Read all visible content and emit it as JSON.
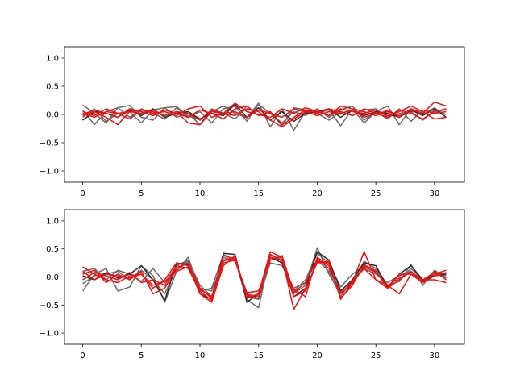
{
  "chart_data": [
    {
      "type": "line",
      "title": "",
      "xlabel": "",
      "ylabel": "",
      "xlim": [
        -1.55,
        32.55
      ],
      "ylim": [
        -1.2,
        1.2
      ],
      "xticks": [
        0,
        5,
        10,
        15,
        20,
        25,
        30
      ],
      "yticks": [
        -1.0,
        -0.5,
        0.0,
        0.5,
        1.0
      ],
      "ytick_labels": [
        "−1.0",
        "−0.5",
        "0.0",
        "0.5",
        "1.0"
      ],
      "grid": false,
      "colors": {
        "gray": "#6b6b6b",
        "dark": "#2a2a2a",
        "red": "#ee1111"
      },
      "series": [
        {
          "color": "gray",
          "values": [
            0.17,
            0.02,
            -0.15,
            0.12,
            0.16,
            -0.05,
            -0.1,
            0.12,
            0.14,
            -0.03,
            -0.08,
            0.05,
            0.15,
            0.02,
            -0.06,
            0.2,
            -0.22,
            0.1,
            -0.28,
            0.05,
            0.02,
            0.08,
            -0.2,
            0.1,
            -0.15,
            0.05,
            0.15,
            -0.18,
            0.1,
            0.0,
            0.12,
            -0.05
          ]
        },
        {
          "color": "gray",
          "values": [
            0.08,
            -0.18,
            0.05,
            0.12,
            -0.05,
            0.1,
            0.02,
            -0.08,
            0.12,
            -0.05,
            0.05,
            -0.15,
            0.1,
            0.15,
            -0.12,
            0.18,
            0.02,
            -0.15,
            0.05,
            -0.02,
            0.1,
            -0.05,
            0.08,
            0.15,
            -0.1,
            0.05,
            -0.08,
            0.1,
            -0.12,
            0.08,
            0.02,
            0.1
          ]
        },
        {
          "color": "gray",
          "values": [
            -0.05,
            0.1,
            -0.12,
            0.02,
            0.05,
            -0.15,
            0.08,
            0.12,
            -0.05,
            0.02,
            -0.18,
            0.1,
            0.02,
            -0.08,
            0.15,
            -0.02,
            0.05,
            -0.2,
            0.12,
            0.08,
            0.02,
            -0.1,
            0.05,
            -0.02,
            0.08,
            0.1,
            -0.05,
            0.02,
            0.05,
            -0.1,
            0.08,
            0.0
          ]
        },
        {
          "color": "dark",
          "values": [
            -0.1,
            0.05,
            0.02,
            -0.05,
            0.08,
            -0.02,
            0.1,
            -0.05,
            0.02,
            0.05,
            -0.08,
            0.02,
            -0.02,
            0.18,
            -0.05,
            0.12,
            -0.1,
            0.05,
            -0.12,
            0.02,
            0.05,
            0.1,
            -0.05,
            0.08,
            -0.02,
            0.05,
            0.02,
            -0.05,
            0.08,
            -0.02,
            0.1,
            -0.05
          ]
        },
        {
          "color": "red",
          "values": [
            0.05,
            -0.02,
            0.1,
            0.02,
            0.05,
            0.08,
            0.02,
            0.05,
            -0.02,
            0.1,
            0.15,
            -0.05,
            0.02,
            0.2,
            0.05,
            0.0,
            -0.05,
            0.1,
            0.02,
            0.12,
            0.05,
            -0.02,
            0.15,
            0.1,
            0.05,
            -0.02,
            0.08,
            -0.05,
            0.1,
            0.02,
            0.22,
            0.15
          ]
        },
        {
          "color": "red",
          "values": [
            0.0,
            0.08,
            0.02,
            -0.05,
            0.1,
            0.05,
            -0.02,
            0.08,
            0.02,
            -0.05,
            0.08,
            0.02,
            -0.08,
            0.1,
            0.15,
            -0.02,
            0.05,
            -0.18,
            -0.05,
            0.08,
            0.02,
            0.1,
            0.05,
            -0.02,
            0.1,
            0.02,
            -0.05,
            0.08,
            0.02,
            -0.08,
            0.05,
            0.1
          ]
        },
        {
          "color": "red",
          "values": [
            -0.02,
            0.05,
            -0.05,
            -0.18,
            0.05,
            0.02,
            0.08,
            -0.02,
            0.05,
            -0.15,
            -0.18,
            0.05,
            0.02,
            -0.02,
            0.1,
            0.05,
            -0.1,
            -0.22,
            -0.08,
            0.05,
            0.08,
            -0.02,
            0.1,
            0.05,
            0.02,
            0.08,
            -0.02,
            0.05,
            0.15,
            0.05,
            -0.08,
            -0.05
          ]
        },
        {
          "color": "red",
          "values": [
            0.02,
            -0.05,
            0.05,
            0.02,
            -0.08,
            0.08,
            0.05,
            -0.02,
            0.05,
            0.02,
            -0.1,
            0.08,
            0.02,
            0.05,
            -0.05,
            0.08,
            0.02,
            -0.05,
            0.1,
            0.05,
            -0.02,
            0.05,
            0.02,
            0.08,
            -0.05,
            0.02,
            0.05,
            -0.02,
            0.05,
            0.08,
            0.02,
            0.05
          ]
        }
      ]
    },
    {
      "type": "line",
      "title": "",
      "xlabel": "",
      "ylabel": "",
      "xlim": [
        -1.55,
        32.55
      ],
      "ylim": [
        -1.2,
        1.2
      ],
      "xticks": [
        0,
        5,
        10,
        15,
        20,
        25,
        30
      ],
      "yticks": [
        -1.0,
        -0.5,
        0.0,
        0.5,
        1.0
      ],
      "ytick_labels": [
        "−1.0",
        "−0.5",
        "0.0",
        "0.5",
        "1.0"
      ],
      "grid": false,
      "colors": {
        "gray": "#6b6b6b",
        "dark": "#2a2a2a",
        "red": "#ee1111"
      },
      "series": [
        {
          "color": "gray",
          "values": [
            -0.25,
            0.05,
            0.15,
            -0.25,
            -0.18,
            0.2,
            0.02,
            -0.45,
            0.1,
            0.35,
            -0.25,
            -0.2,
            0.4,
            0.3,
            -0.4,
            -0.55,
            0.4,
            0.3,
            -0.3,
            -0.15,
            0.52,
            0.05,
            -0.3,
            -0.1,
            0.28,
            0.15,
            -0.15,
            -0.08,
            0.22,
            -0.15,
            0.12,
            -0.02
          ]
        },
        {
          "color": "gray",
          "values": [
            0.1,
            0.15,
            -0.05,
            0.12,
            0.05,
            -0.08,
            0.15,
            -0.1,
            0.2,
            0.3,
            -0.15,
            -0.35,
            0.35,
            0.28,
            -0.3,
            -0.35,
            0.3,
            0.35,
            -0.25,
            -0.05,
            0.42,
            0.25,
            -0.18,
            0.05,
            0.2,
            0.12,
            -0.2,
            -0.05,
            0.15,
            -0.05,
            0.08,
            0.05
          ]
        },
        {
          "color": "gray",
          "values": [
            -0.12,
            0.02,
            0.05,
            0.1,
            -0.05,
            0.12,
            -0.05,
            -0.3,
            0.15,
            0.28,
            -0.2,
            -0.25,
            0.28,
            0.35,
            -0.35,
            -0.4,
            0.25,
            0.2,
            -0.2,
            -0.1,
            0.3,
            0.1,
            -0.35,
            -0.05,
            0.15,
            0.05,
            -0.1,
            0.02,
            0.1,
            -0.1,
            0.05,
            0.02
          ]
        },
        {
          "color": "dark",
          "values": [
            0.02,
            -0.05,
            0.08,
            -0.02,
            0.05,
            0.2,
            -0.05,
            -0.42,
            0.25,
            0.22,
            -0.3,
            -0.4,
            0.42,
            0.4,
            -0.45,
            -0.3,
            0.35,
            0.25,
            -0.35,
            -0.2,
            0.45,
            0.3,
            -0.25,
            -0.05,
            0.25,
            0.2,
            -0.18,
            0.05,
            0.2,
            -0.05,
            0.02,
            0.05
          ]
        },
        {
          "color": "red",
          "values": [
            0.18,
            0.05,
            -0.05,
            -0.1,
            0.02,
            0.05,
            -0.2,
            -0.05,
            0.25,
            0.2,
            -0.3,
            -0.45,
            0.2,
            0.38,
            -0.38,
            -0.3,
            0.45,
            0.35,
            -0.58,
            -0.2,
            0.25,
            0.28,
            -0.4,
            -0.1,
            0.45,
            -0.05,
            -0.15,
            -0.3,
            0.05,
            -0.05,
            0.05,
            0.12
          ]
        },
        {
          "color": "red",
          "values": [
            0.05,
            0.12,
            -0.1,
            0.05,
            -0.05,
            0.1,
            -0.3,
            -0.2,
            0.15,
            0.25,
            -0.2,
            -0.38,
            0.38,
            0.32,
            -0.32,
            -0.38,
            0.4,
            0.28,
            -0.22,
            -0.35,
            0.35,
            0.2,
            -0.3,
            -0.08,
            0.15,
            -0.05,
            -0.2,
            -0.05,
            0.1,
            -0.08,
            0.1,
            -0.05
          ]
        },
        {
          "color": "red",
          "values": [
            -0.05,
            0.08,
            0.02,
            -0.05,
            0.08,
            -0.1,
            -0.05,
            -0.15,
            0.2,
            0.15,
            -0.25,
            -0.42,
            0.3,
            0.35,
            -0.35,
            -0.32,
            0.35,
            0.3,
            -0.35,
            -0.25,
            0.28,
            0.25,
            -0.38,
            -0.15,
            0.22,
            0.1,
            -0.2,
            0.05,
            0.05,
            -0.1,
            0.02,
            0.08
          ]
        },
        {
          "color": "red",
          "values": [
            0.1,
            -0.05,
            0.05,
            0.02,
            -0.02,
            0.05,
            -0.15,
            -0.08,
            0.1,
            0.18,
            -0.22,
            -0.35,
            0.25,
            0.3,
            -0.28,
            -0.25,
            0.3,
            0.38,
            -0.28,
            -0.1,
            0.32,
            0.15,
            -0.28,
            -0.12,
            0.18,
            0.08,
            -0.15,
            -0.02,
            0.08,
            -0.05,
            -0.05,
            -0.1
          ]
        }
      ]
    }
  ]
}
